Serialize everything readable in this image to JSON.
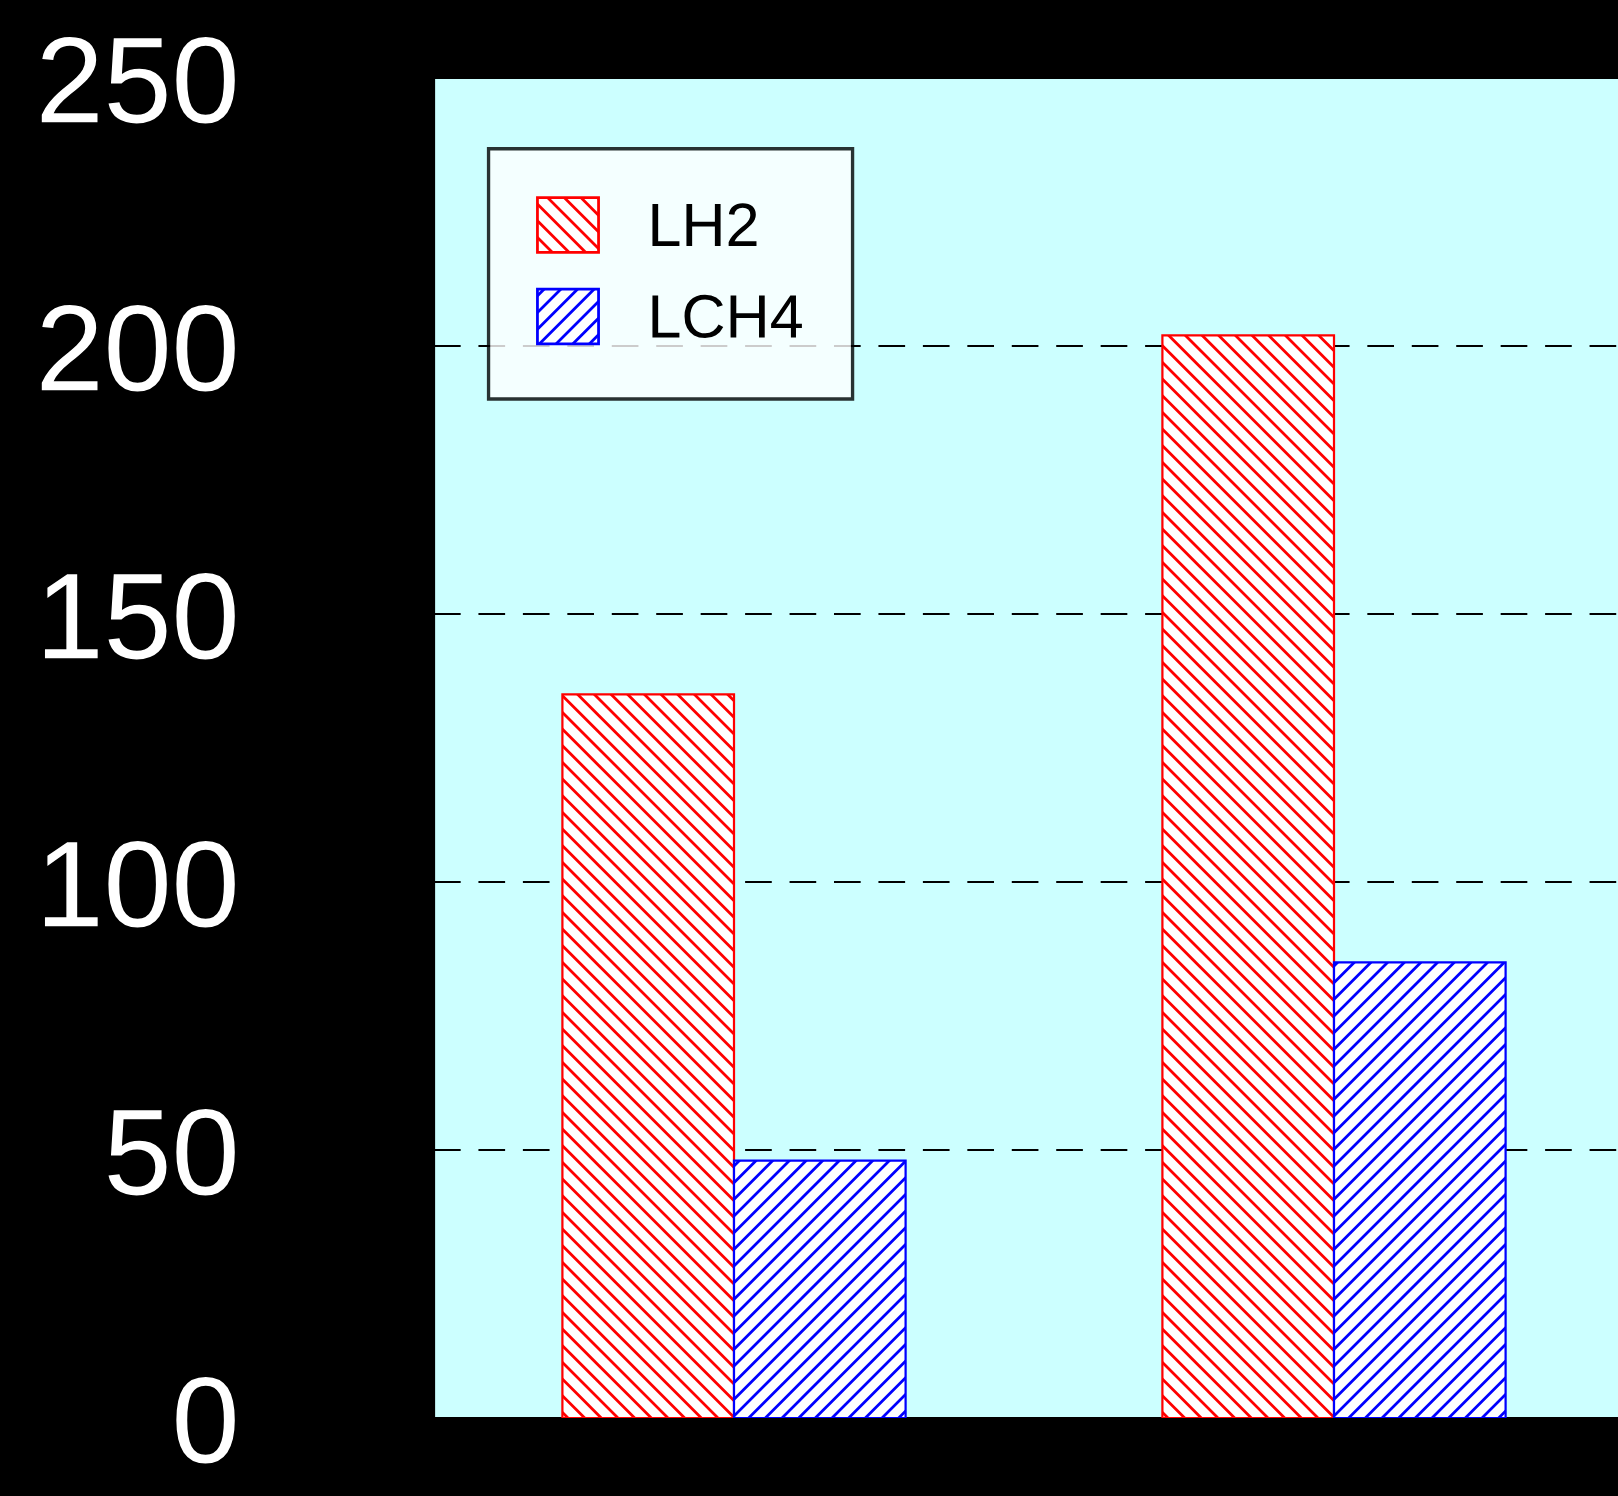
{
  "chart_data": {
    "type": "bar",
    "categories": [
      null,
      null
    ],
    "series": [
      {
        "name": "LH2",
        "color": "#ff0000",
        "values": [
          135,
          202
        ]
      },
      {
        "name": "LCH4",
        "color": "#0000ff",
        "values": [
          48,
          85
        ]
      }
    ],
    "ylim": [
      0,
      250
    ],
    "yticks": [
      0,
      50,
      100,
      150,
      200,
      250
    ],
    "grid": "y",
    "legend": "top left"
  }
}
